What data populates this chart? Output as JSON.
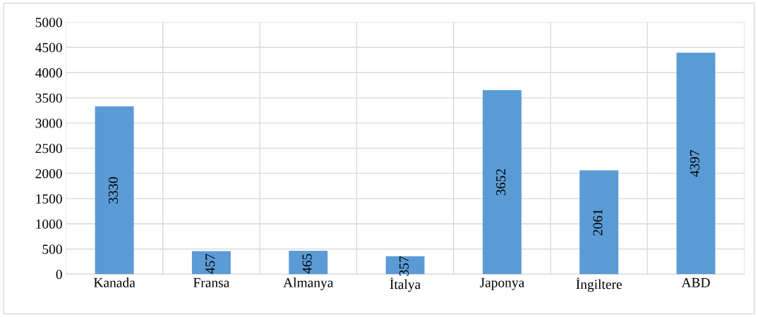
{
  "chart_data": {
    "type": "bar",
    "categories": [
      "Kanada",
      "Fransa",
      "Almanya",
      "İtalya",
      "Japonya",
      "İngiltere",
      "ABD"
    ],
    "values": [
      3330,
      457,
      465,
      357,
      3652,
      2061,
      4397
    ],
    "color": "#5b9bd5",
    "ylim": [
      0,
      5000
    ],
    "yticks": [
      0,
      500,
      1000,
      1500,
      2000,
      2500,
      3000,
      3500,
      4000,
      4500,
      5000
    ],
    "grid": true,
    "data_labels": true
  }
}
